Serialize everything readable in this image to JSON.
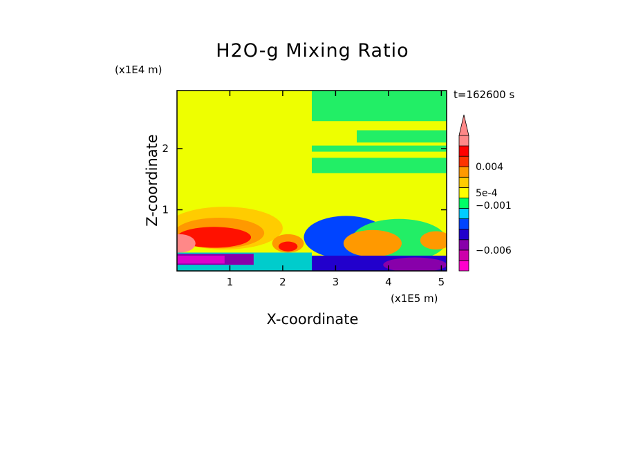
{
  "chart_data": {
    "type": "heatmap",
    "title": "H2O-g Mixing Ratio",
    "xlabel": "X-coordinate",
    "ylabel": "Z-coordinate",
    "x_unit": "(x1E5 m)",
    "y_unit": "(x1E4 m)",
    "time_label": "t=162600 s",
    "xlim": [
      0,
      5.1
    ],
    "ylim": [
      0,
      2.95
    ],
    "xticks": [
      1,
      2,
      3,
      4,
      5
    ],
    "yticks": [
      1,
      2
    ],
    "colorbar": {
      "levels": [
        "#ff00cc",
        "#cc00aa",
        "#8800aa",
        "#2200cc",
        "#0044ff",
        "#00ccff",
        "#00ff66",
        "#ffff00",
        "#ffcc00",
        "#ff9900",
        "#ff3300",
        "#ff0000",
        "#ff8888"
      ],
      "labels": [
        {
          "text": "0.004",
          "level": 10
        },
        {
          "text": "5e-4",
          "level": 7.5
        },
        {
          "text": "−0.001",
          "level": 6.3
        },
        {
          "text": "−0.006",
          "level": 2
        }
      ]
    },
    "regions": [
      {
        "kind": "rect",
        "x": [
          0,
          2.55
        ],
        "z": [
          0,
          2.95
        ],
        "color": "#eeff00"
      },
      {
        "kind": "rect",
        "x": [
          2.55,
          5.1
        ],
        "z": [
          0,
          2.95
        ],
        "color": "#eeff00"
      },
      {
        "kind": "rect",
        "x": [
          2.55,
          5.1
        ],
        "z": [
          2.45,
          2.95
        ],
        "color": "#22ee66"
      },
      {
        "kind": "rect",
        "x": [
          2.55,
          5.1
        ],
        "z": [
          1.95,
          2.05
        ],
        "color": "#22ee66"
      },
      {
        "kind": "rect",
        "x": [
          2.55,
          5.1
        ],
        "z": [
          1.6,
          1.85
        ],
        "color": "#22ee66"
      },
      {
        "kind": "rect",
        "x": [
          3.4,
          5.1
        ],
        "z": [
          2.1,
          2.3
        ],
        "color": "#22ee66"
      },
      {
        "kind": "ellipse",
        "cx": 0.9,
        "cz": 0.7,
        "rx": 1.1,
        "rz": 0.35,
        "color": "#ffcc00"
      },
      {
        "kind": "ellipse",
        "cx": 0.8,
        "cz": 0.62,
        "rx": 0.85,
        "rz": 0.25,
        "color": "#ff9900"
      },
      {
        "kind": "ellipse",
        "cx": 0.7,
        "cz": 0.55,
        "rx": 0.7,
        "rz": 0.17,
        "color": "#ff1100"
      },
      {
        "kind": "ellipse",
        "cx": 0.05,
        "cz": 0.45,
        "rx": 0.3,
        "rz": 0.15,
        "color": "#ff8888"
      },
      {
        "kind": "ellipse",
        "cx": 2.1,
        "cz": 0.45,
        "rx": 0.3,
        "rz": 0.15,
        "color": "#ff9900"
      },
      {
        "kind": "ellipse",
        "cx": 2.1,
        "cz": 0.4,
        "rx": 0.18,
        "rz": 0.08,
        "color": "#ff1100"
      },
      {
        "kind": "rect",
        "x": [
          0,
          2.55
        ],
        "z": [
          0,
          0.3
        ],
        "color": "#00cccc"
      },
      {
        "kind": "rect",
        "x": [
          0,
          1.45
        ],
        "z": [
          0.1,
          0.28
        ],
        "color": "#8800aa"
      },
      {
        "kind": "rect",
        "x": [
          0,
          0.9
        ],
        "z": [
          0.12,
          0.25
        ],
        "color": "#dd00cc"
      },
      {
        "kind": "ellipse",
        "cx": 3.2,
        "cz": 0.55,
        "rx": 0.8,
        "rz": 0.35,
        "color": "#0044ff"
      },
      {
        "kind": "ellipse",
        "cx": 4.2,
        "cz": 0.5,
        "rx": 0.9,
        "rz": 0.35,
        "color": "#22ee66"
      },
      {
        "kind": "ellipse",
        "cx": 3.7,
        "cz": 0.45,
        "rx": 0.55,
        "rz": 0.22,
        "color": "#ff9900"
      },
      {
        "kind": "rect",
        "x": [
          2.55,
          5.1
        ],
        "z": [
          0,
          0.25
        ],
        "color": "#2200cc"
      },
      {
        "kind": "ellipse",
        "cx": 4.5,
        "cz": 0.1,
        "rx": 0.6,
        "rz": 0.12,
        "color": "#8800aa"
      },
      {
        "kind": "ellipse",
        "cx": 4.9,
        "cz": 0.5,
        "rx": 0.3,
        "rz": 0.15,
        "color": "#ff9900"
      }
    ]
  }
}
